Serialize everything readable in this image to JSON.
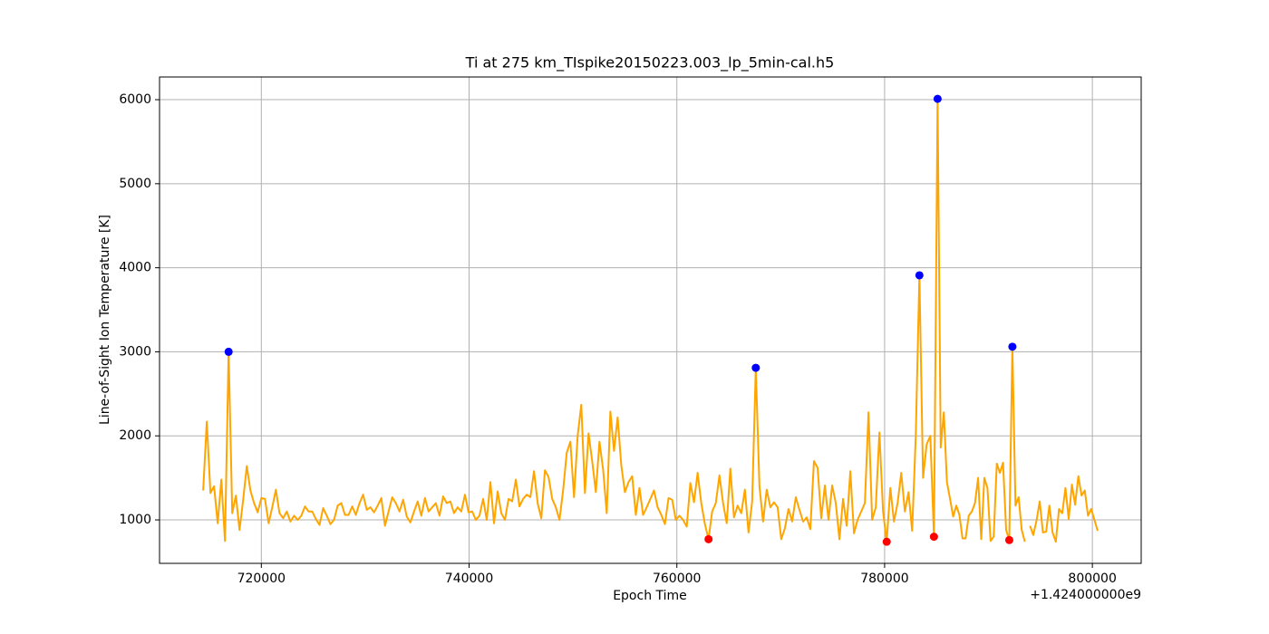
{
  "chart_data": {
    "type": "line",
    "title": "Ti at 275 km_TIspike20150223.003_lp_5min-cal.h5",
    "xlabel": "Epoch Time",
    "ylabel": "Line-of-Sight Ion Temperature [K]",
    "x_offset_label": "+1.424000000e9",
    "xlim": [
      710200,
      804700
    ],
    "ylim": [
      483,
      6270
    ],
    "xticks": [
      720000,
      740000,
      760000,
      780000,
      800000
    ],
    "yticks": [
      1000,
      2000,
      3000,
      4000,
      5000,
      6000
    ],
    "grid": true,
    "series": [
      {
        "type": "line",
        "color": "#ffa500",
        "x": [
          714400,
          714750,
          715100,
          715450,
          715800,
          716150,
          716500,
          716850,
          717200,
          717550,
          717900,
          718250,
          718600,
          718950,
          719300,
          719650,
          720000,
          720350,
          720700,
          721050,
          721400,
          721750,
          722100,
          722450,
          722800,
          723150,
          723500,
          723850,
          724200,
          724550,
          724900,
          725250,
          725600,
          725950,
          726300,
          726650,
          727000,
          727350,
          727700,
          728050,
          728400,
          728750,
          729100,
          729450,
          729800,
          730150,
          730500,
          730850,
          731200,
          731550,
          731900,
          732250,
          732600,
          732950,
          733300,
          733650,
          734000,
          734350,
          734700,
          735050,
          735400,
          735750,
          736100,
          736450,
          736800,
          737150,
          737500,
          737850,
          738200,
          738550,
          738900,
          739250,
          739600,
          739950,
          740300,
          740650,
          741000,
          741350,
          741700,
          742050,
          742400,
          742750,
          743100,
          743450,
          743800,
          744150,
          744500,
          744850,
          745200,
          745550,
          745900,
          746250,
          746600,
          746950,
          747300,
          747650,
          748000,
          748350,
          748700,
          749050,
          749400,
          749750,
          750100,
          750450,
          750800,
          751150,
          751500,
          751850,
          752200,
          752550,
          752900,
          753250,
          753600,
          753950,
          754300,
          754650,
          755000,
          755350,
          755700,
          756050,
          756400,
          756750,
          757100,
          757450,
          757800,
          758150,
          758500,
          758850,
          759200,
          759550,
          759900,
          760250,
          760600,
          760950,
          761300,
          761650,
          762000,
          762350,
          762700,
          763050,
          763400,
          763750,
          764100,
          764450,
          764800,
          765150,
          765500,
          765850,
          766200,
          766550,
          766900,
          767250,
          767600,
          767950,
          768300,
          768650,
          769000,
          769350,
          769700,
          770050,
          770400,
          770750,
          771100,
          771450,
          771800,
          772150,
          772500,
          772850,
          773200,
          773550,
          773900,
          774250,
          774600,
          774950,
          775300,
          775650,
          776000,
          776350,
          776700,
          777050,
          777400,
          777750,
          778100,
          778450,
          778800,
          779150,
          779500,
          779850,
          780200,
          780550,
          780900,
          781250,
          781600,
          781950,
          782300,
          782650,
          783000,
          783350,
          783700,
          784050,
          784400,
          784750,
          785100,
          785400,
          785700,
          786000,
          786300,
          786600,
          786900,
          787200,
          787500,
          787800,
          788100,
          788400,
          788700,
          789000,
          789300,
          789600,
          789900,
          790200,
          790500,
          790800,
          791100,
          791400,
          791700,
          792000,
          792300,
          792600,
          792900,
          793200,
          793500,
          793750,
          794000,
          794310,
          794620,
          794930,
          795240,
          795550,
          795860,
          796170,
          796480,
          796790,
          797100,
          797410,
          797720,
          798030,
          798340,
          798650,
          798960,
          799270,
          799580,
          799890,
          800200,
          800510
        ],
        "values": [
          1350,
          2170,
          1320,
          1400,
          960,
          1480,
          750,
          3000,
          1080,
          1290,
          880,
          1240,
          1640,
          1350,
          1200,
          1090,
          1260,
          1250,
          960,
          1150,
          1360,
          1080,
          1020,
          1100,
          980,
          1050,
          1000,
          1050,
          1160,
          1100,
          1100,
          1010,
          940,
          1140,
          1050,
          950,
          1000,
          1170,
          1200,
          1060,
          1060,
          1160,
          1060,
          1200,
          1300,
          1120,
          1150,
          1090,
          1170,
          1260,
          930,
          1100,
          1270,
          1200,
          1100,
          1240,
          1040,
          970,
          1100,
          1220,
          1050,
          1260,
          1100,
          1150,
          1200,
          1050,
          1280,
          1200,
          1220,
          1080,
          1150,
          1100,
          1300,
          1090,
          1100,
          1000,
          1050,
          1250,
          1000,
          1450,
          960,
          1340,
          1080,
          1000,
          1250,
          1220,
          1480,
          1160,
          1250,
          1300,
          1270,
          1580,
          1200,
          1020,
          1590,
          1510,
          1250,
          1150,
          1000,
          1350,
          1800,
          1930,
          1270,
          2000,
          2370,
          1320,
          2030,
          1700,
          1330,
          1930,
          1600,
          1080,
          2290,
          1820,
          2220,
          1650,
          1330,
          1450,
          1520,
          1060,
          1380,
          1060,
          1150,
          1250,
          1350,
          1150,
          1060,
          950,
          1260,
          1240,
          1000,
          1050,
          1000,
          920,
          1440,
          1210,
          1560,
          1200,
          950,
          770,
          1100,
          1200,
          1530,
          1200,
          960,
          1610,
          1030,
          1170,
          1080,
          1360,
          850,
          1220,
          2810,
          1400,
          980,
          1360,
          1150,
          1210,
          1150,
          770,
          900,
          1130,
          980,
          1270,
          1120,
          980,
          1030,
          890,
          1700,
          1620,
          1020,
          1410,
          1000,
          1410,
          1200,
          770,
          1250,
          930,
          1580,
          840,
          1000,
          1100,
          1200,
          2280,
          1000,
          1150,
          2040,
          1100,
          740,
          1380,
          980,
          1200,
          1560,
          1100,
          1330,
          870,
          2000,
          3910,
          1500,
          1900,
          2000,
          800,
          6010,
          1860,
          2280,
          1450,
          1250,
          1040,
          1170,
          1060,
          780,
          780,
          1050,
          1100,
          1200,
          1500,
          770,
          1500,
          1380,
          750,
          800,
          1670,
          1560,
          1680,
          880,
          760,
          3060,
          1170,
          1270,
          880,
          740,
          null,
          930,
          820,
          990,
          1220,
          850,
          860,
          1170,
          850,
          740,
          1130,
          1080,
          1380,
          1010,
          1420,
          1180,
          1520,
          1290,
          1350,
          1050,
          1130,
          1000,
          870
        ]
      },
      {
        "type": "scatter",
        "color": "#0000ff",
        "x": [
          716850,
          767600,
          783350,
          785100,
          792300
        ],
        "values": [
          3000,
          2810,
          3910,
          6010,
          3060
        ]
      },
      {
        "type": "scatter",
        "color": "#ff0000",
        "x": [
          763050,
          780200,
          784750,
          792000
        ],
        "values": [
          770,
          740,
          800,
          760
        ]
      }
    ]
  }
}
